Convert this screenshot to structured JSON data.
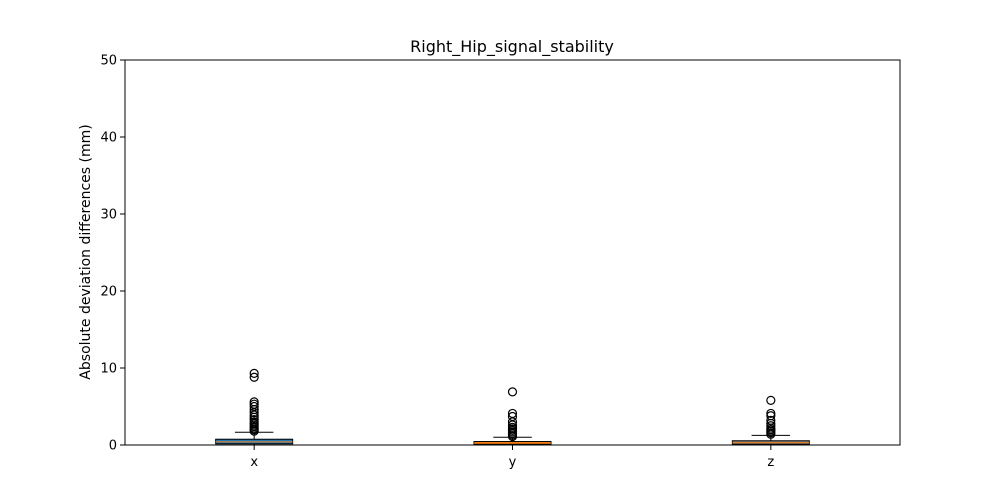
{
  "chart_data": {
    "type": "boxplot",
    "title": "Right_Hip_signal_stability",
    "xlabel": "",
    "ylabel": "Absolute deviation differences (mm)",
    "ylim": [
      0,
      50
    ],
    "yticks": [
      0,
      10,
      20,
      30,
      40,
      50
    ],
    "categories": [
      "x",
      "y",
      "z"
    ],
    "grid": false,
    "legend": "none",
    "boxes": [
      {
        "category": "x",
        "color": "#1f77b4",
        "min": 0.0,
        "q1": 0.15,
        "median": 0.4,
        "q3": 0.75,
        "whisker_high": 1.65,
        "outliers": [
          1.8,
          2.0,
          2.2,
          2.4,
          2.6,
          2.8,
          3.0,
          3.3,
          3.6,
          3.9,
          4.2,
          4.6,
          5.0,
          5.3,
          5.6,
          8.8,
          9.3
        ]
      },
      {
        "category": "y",
        "color": "#ff7f0e",
        "min": 0.0,
        "q1": 0.1,
        "median": 0.25,
        "q3": 0.45,
        "whisker_high": 1.0,
        "outliers": [
          1.1,
          1.3,
          1.5,
          1.7,
          1.9,
          2.1,
          2.3,
          2.6,
          3.0,
          3.7,
          4.1,
          6.9
        ]
      },
      {
        "category": "z",
        "color": "#7f7f7f",
        "min": 0.0,
        "q1": 0.1,
        "median": 0.3,
        "q3": 0.55,
        "whisker_high": 1.25,
        "outliers": [
          1.4,
          1.6,
          1.8,
          2.0,
          2.2,
          2.5,
          2.8,
          3.2,
          3.8,
          4.1,
          5.8
        ]
      }
    ]
  }
}
